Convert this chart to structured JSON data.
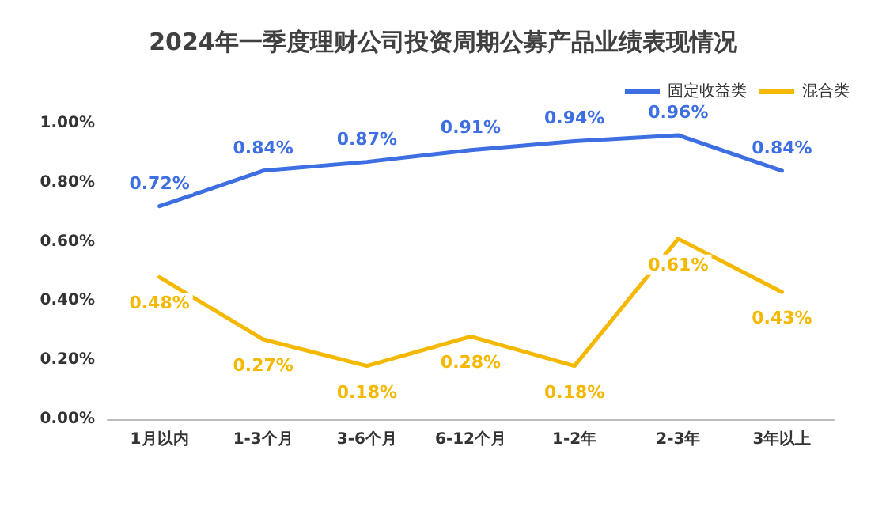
{
  "chart_data": {
    "type": "line",
    "title": "2024年一季度理财公司投资周期公募产品业绩表现情况",
    "categories": [
      "1月以内",
      "1-3个月",
      "3-6个月",
      "6-12个月",
      "1-2年",
      "2-3年",
      "3年以上"
    ],
    "series": [
      {
        "name": "固定收益类",
        "color": "#3d6fe3",
        "values": [
          0.72,
          0.84,
          0.87,
          0.91,
          0.94,
          0.96,
          0.84
        ],
        "value_labels": [
          "0.72%",
          "0.84%",
          "0.87%",
          "0.91%",
          "0.94%",
          "0.96%",
          "0.84%"
        ]
      },
      {
        "name": "混合类",
        "color": "#f5b800",
        "values": [
          0.48,
          0.27,
          0.18,
          0.28,
          0.18,
          0.61,
          0.43
        ],
        "value_labels": [
          "0.48%",
          "0.27%",
          "0.18%",
          "0.28%",
          "0.18%",
          "0.61%",
          "0.43%"
        ]
      }
    ],
    "ylim": [
      0,
      1
    ],
    "yticks": [
      {
        "value": 0,
        "label": "0.00%"
      },
      {
        "value": 0.2,
        "label": "0.20%"
      },
      {
        "value": 0.4,
        "label": "0.40%"
      },
      {
        "value": 0.6,
        "label": "0.60%"
      },
      {
        "value": 0.8,
        "label": "0.80%"
      },
      {
        "value": 1,
        "label": "1.00%"
      }
    ],
    "legend": "top right",
    "marker": "none",
    "line_style": "solid",
    "grid": false
  }
}
